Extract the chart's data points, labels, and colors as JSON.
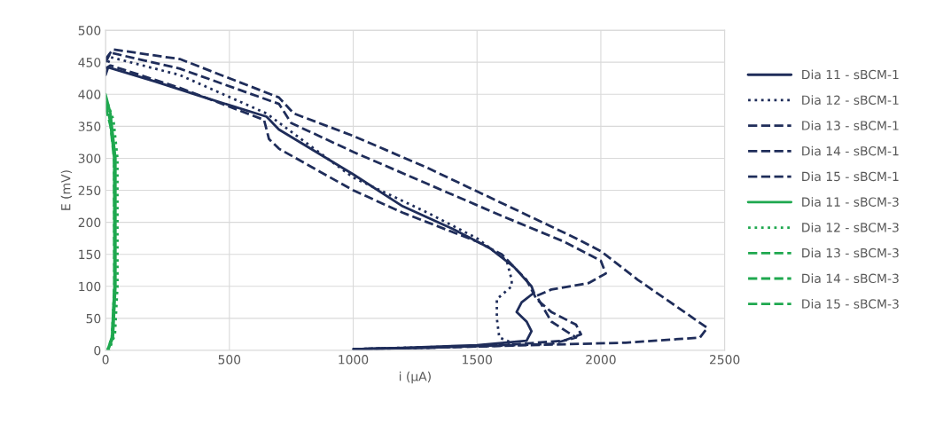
{
  "chart_data": {
    "type": "line",
    "xlabel": "i (µA)",
    "ylabel": "E (mV)",
    "xlim": [
      0,
      2500
    ],
    "xticks": [
      0,
      500,
      1000,
      1500,
      2000,
      2500
    ],
    "ylim": [
      0,
      500
    ],
    "yticks": [
      0,
      50,
      100,
      150,
      200,
      250,
      300,
      350,
      400,
      450,
      500
    ],
    "grid": true,
    "legend": "right",
    "marker": "none",
    "series": [
      {
        "name": "Dia 11 - sBCM-1",
        "color": "#1f2d5a",
        "line_style": "solid",
        "x": [
          0,
          10,
          200,
          400,
          650,
          700,
          1000,
          1200,
          1400,
          1550,
          1650,
          1720,
          1730,
          1680,
          1660,
          1700,
          1720,
          1700,
          1500,
          1200,
          1000
        ],
        "values": [
          430,
          442,
          420,
          395,
          365,
          345,
          275,
          225,
          190,
          160,
          130,
          100,
          90,
          75,
          60,
          45,
          30,
          15,
          8,
          4,
          2
        ]
      },
      {
        "name": "Dia 12 - sBCM-1",
        "color": "#1f2d5a",
        "line_style": "dotted",
        "x": [
          0,
          20,
          300,
          650,
          1000,
          1300,
          1500,
          1620,
          1640,
          1640,
          1580,
          1580,
          1590,
          1640,
          1500,
          1200,
          1000
        ],
        "values": [
          440,
          458,
          430,
          370,
          270,
          215,
          175,
          140,
          110,
          100,
          80,
          50,
          20,
          12,
          7,
          4,
          2
        ]
      },
      {
        "name": "Dia 13 - sBCM-1",
        "color": "#1f2d5a",
        "line_style": "dashed",
        "x": [
          0,
          20,
          300,
          640,
          660,
          700,
          1000,
          1200,
          1500,
          1600,
          1700,
          1740,
          1800,
          1900,
          1920,
          1850,
          1600,
          1300,
          1000
        ],
        "values": [
          440,
          445,
          410,
          360,
          330,
          315,
          250,
          215,
          170,
          150,
          110,
          80,
          60,
          40,
          25,
          15,
          8,
          4,
          2
        ]
      },
      {
        "name": "Dia 14 - sBCM-1",
        "color": "#1f2d5a",
        "line_style": "dashed",
        "x": [
          0,
          20,
          300,
          700,
          750,
          1000,
          1300,
          1600,
          1850,
          2000,
          2020,
          1950,
          1800,
          1740,
          1800,
          1900,
          1800,
          1500,
          1000
        ],
        "values": [
          450,
          465,
          440,
          385,
          355,
          310,
          260,
          210,
          170,
          140,
          120,
          105,
          95,
          85,
          45,
          20,
          10,
          6,
          2
        ]
      },
      {
        "name": "Dia 15 - sBCM-1",
        "color": "#1f2d5a",
        "line_style": "dashed",
        "x": [
          0,
          30,
          300,
          700,
          760,
          1000,
          1300,
          1600,
          1900,
          2000,
          2150,
          2300,
          2430,
          2400,
          2100,
          1700,
          1300,
          1000
        ],
        "values": [
          455,
          470,
          455,
          395,
          370,
          335,
          285,
          230,
          175,
          155,
          110,
          70,
          35,
          20,
          12,
          8,
          4,
          2
        ]
      },
      {
        "name": "Dia 11 - sBCM-3",
        "color": "#1fa84f",
        "line_style": "solid",
        "x": [
          0,
          20,
          40,
          40,
          30,
          10
        ],
        "values": [
          400,
          370,
          300,
          100,
          20,
          0
        ]
      },
      {
        "name": "Dia 12 - sBCM-3",
        "color": "#1fa84f",
        "line_style": "dotted",
        "x": [
          0,
          32,
          48,
          48,
          38,
          14
        ],
        "values": [
          395,
          360,
          300,
          100,
          25,
          0
        ]
      },
      {
        "name": "Dia 13 - sBCM-3",
        "color": "#1fa84f",
        "line_style": "dashed",
        "x": [
          0,
          18,
          35,
          36,
          25,
          8
        ],
        "values": [
          390,
          360,
          300,
          100,
          20,
          0
        ]
      },
      {
        "name": "Dia 14 - sBCM-3",
        "color": "#1fa84f",
        "line_style": "dashed",
        "x": [
          0,
          22,
          36,
          37,
          27,
          9
        ],
        "values": [
          385,
          355,
          300,
          100,
          20,
          0
        ]
      },
      {
        "name": "Dia 15 - sBCM-3",
        "color": "#1fa84f",
        "line_style": "dashed",
        "x": [
          0,
          20,
          34,
          35,
          26,
          7
        ],
        "values": [
          380,
          350,
          300,
          100,
          20,
          0
        ]
      }
    ]
  }
}
